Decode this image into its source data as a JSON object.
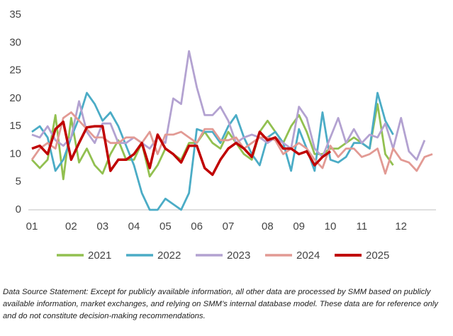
{
  "chart_data": {
    "type": "line",
    "categories": [
      "01",
      null,
      null,
      null,
      null,
      "02",
      null,
      null,
      null,
      "03",
      null,
      null,
      null,
      "04",
      null,
      null,
      null,
      "05",
      null,
      null,
      null,
      "06",
      null,
      null,
      null,
      "07",
      null,
      null,
      null,
      null,
      "08",
      null,
      null,
      null,
      "09",
      null,
      null,
      null,
      "10",
      null,
      null,
      null,
      "11",
      null,
      null,
      null,
      null,
      "12",
      null,
      null,
      null,
      null
    ],
    "series": [
      {
        "name": "2021",
        "color": "#92c050",
        "values": [
          9,
          7.5,
          9,
          17,
          5.5,
          16.5,
          8.5,
          11,
          8,
          6.5,
          10,
          12.5,
          9,
          9,
          12,
          6,
          8,
          11,
          10,
          9,
          12,
          12,
          14,
          12,
          11,
          14,
          12,
          10,
          9,
          14,
          16,
          14,
          12,
          15,
          17,
          14,
          10,
          10,
          11,
          11,
          12,
          13,
          12,
          11,
          19,
          10,
          8,
          null,
          null,
          null,
          null,
          null
        ]
      },
      {
        "name": "2022",
        "color": "#4bacc6",
        "values": [
          14,
          15,
          13,
          7,
          9,
          13,
          16.5,
          21,
          19,
          16,
          17.5,
          15,
          11.5,
          8,
          3,
          0,
          0,
          2,
          1,
          0,
          3,
          14.5,
          14,
          14,
          12,
          15,
          17,
          13,
          10,
          8,
          13,
          14,
          12,
          7,
          14.5,
          11,
          7,
          17.5,
          9,
          8.5,
          9.5,
          12,
          12,
          11,
          21,
          16,
          13.5,
          null,
          null,
          null,
          null,
          null
        ]
      },
      {
        "name": "2023",
        "color": "#b3a2d1",
        "values": [
          13.5,
          13,
          15,
          12.5,
          11.5,
          13,
          19.5,
          14,
          12,
          15.5,
          15.5,
          12,
          12,
          13,
          12,
          11,
          13,
          12,
          20,
          19,
          28.5,
          22,
          17,
          17,
          18.5,
          16,
          12,
          13,
          13.5,
          13,
          12,
          13,
          12,
          11,
          18.5,
          16.5,
          11,
          9.5,
          13,
          16.5,
          12,
          14.5,
          12,
          13.5,
          13,
          15.5,
          11,
          16.5,
          10.5,
          9,
          12.5,
          null
        ]
      },
      {
        "name": "2024",
        "color": "#e29a94",
        "values": [
          9,
          11,
          12,
          11,
          16.5,
          17.5,
          16,
          14.5,
          13,
          13,
          12,
          12,
          13,
          13,
          12,
          14,
          10,
          13.5,
          13.5,
          14,
          13,
          12,
          14.5,
          14.5,
          12.5,
          12.5,
          13,
          11,
          12,
          13,
          13,
          12.5,
          10,
          11,
          12,
          11,
          9,
          7.5,
          11.5,
          9.5,
          11,
          11,
          9.5,
          10,
          11,
          6.5,
          11,
          9,
          8.5,
          7,
          9.5,
          10
        ]
      },
      {
        "name": "2025",
        "color": "#c00000",
        "values": [
          11,
          11.5,
          10,
          14.5,
          15.8,
          9,
          12,
          14.8,
          15,
          15,
          7,
          9,
          9,
          10,
          12,
          7.5,
          13.5,
          11,
          10,
          8.5,
          11.5,
          11.5,
          7.5,
          6.3,
          9,
          11,
          12,
          11,
          9.5,
          14,
          12.5,
          13,
          11,
          11,
          10,
          10.5,
          8,
          9.5,
          10.5,
          null,
          null,
          null,
          null,
          null,
          null,
          null,
          null,
          null,
          null,
          null,
          null,
          null
        ]
      }
    ],
    "ylim": [
      0,
      35
    ],
    "yticks": [
      0,
      5,
      10,
      15,
      20,
      25,
      30,
      35
    ],
    "grid": false,
    "legend": "bottom",
    "note": "Data Source Statement: Except for publicly available information, all other data are processed by SMM based on publicly available information, market exchanges, and relying on SMM’s internal database model. These data are for reference only and do not constitute decision-making recommendations."
  }
}
